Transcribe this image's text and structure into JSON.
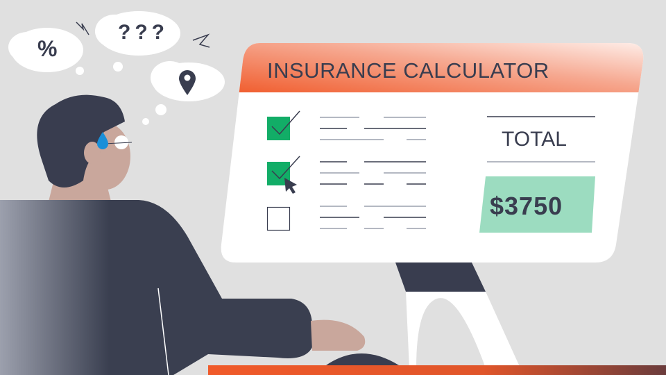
{
  "calculator": {
    "title": "INSURANCE CALCULATOR",
    "total_label": "TOTAL",
    "total_value": "$3750",
    "options": [
      {
        "checked": true
      },
      {
        "checked": true
      },
      {
        "checked": false
      }
    ]
  },
  "thought_bubbles": {
    "question": "???",
    "percent": "%",
    "location_icon": "map-pin-icon"
  },
  "colors": {
    "header_accent": "#f05a2a",
    "checkbox_checked": "#12ad67",
    "total_highlight": "#9cdcc0",
    "text_dark": "#393d4f",
    "background": "#e0e0e0"
  }
}
